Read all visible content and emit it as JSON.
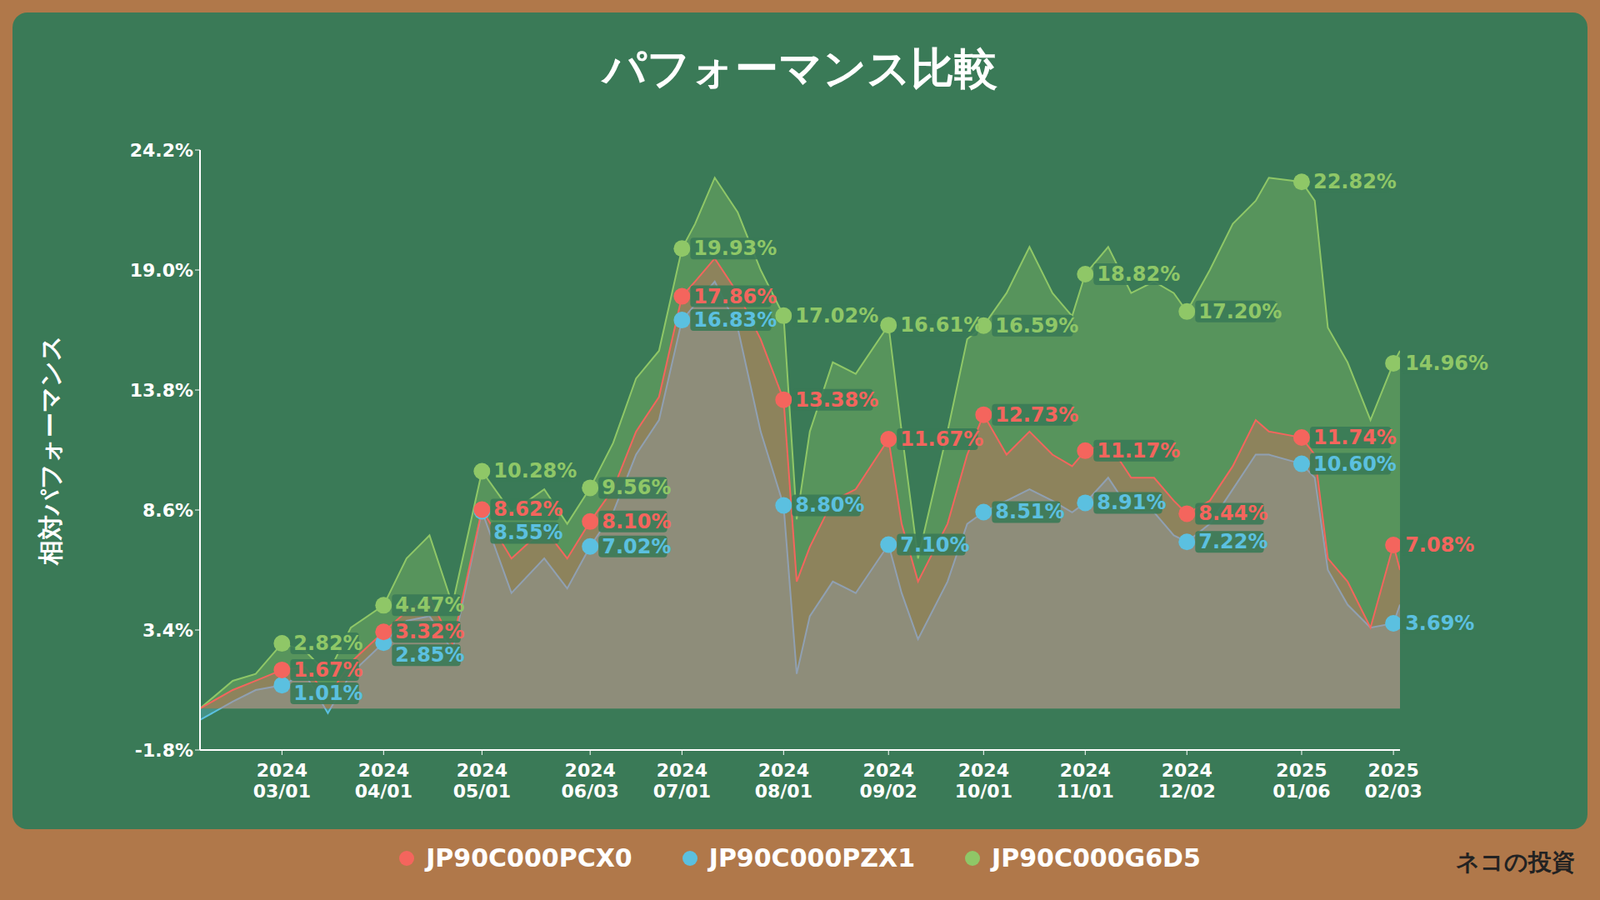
{
  "chart_data": {
    "type": "area",
    "title": "パフォーマンス比較",
    "y_label": "相対パフォーマンス",
    "credit": "ネコの投資",
    "x": [
      "2024-02-05",
      "2024-02-15",
      "2024-02-22",
      "2024-03-01",
      "2024-03-08",
      "2024-03-15",
      "2024-03-22",
      "2024-04-01",
      "2024-04-08",
      "2024-04-15",
      "2024-04-22",
      "2024-05-01",
      "2024-05-10",
      "2024-05-20",
      "2024-05-27",
      "2024-06-03",
      "2024-06-10",
      "2024-06-17",
      "2024-06-24",
      "2024-07-01",
      "2024-07-05",
      "2024-07-11",
      "2024-07-18",
      "2024-07-25",
      "2024-08-01",
      "2024-08-05",
      "2024-08-09",
      "2024-08-16",
      "2024-08-23",
      "2024-09-02",
      "2024-09-06",
      "2024-09-11",
      "2024-09-20",
      "2024-09-26",
      "2024-10-01",
      "2024-10-08",
      "2024-10-15",
      "2024-10-22",
      "2024-10-28",
      "2024-11-01",
      "2024-11-08",
      "2024-11-15",
      "2024-11-22",
      "2024-11-28",
      "2024-12-02",
      "2024-12-09",
      "2024-12-16",
      "2024-12-23",
      "2024-12-27",
      "2025-01-06",
      "2025-01-10",
      "2025-01-14",
      "2025-01-20",
      "2025-01-27",
      "2025-02-03",
      "2025-02-05"
    ],
    "xlim": [
      "2024-02-05",
      "2025-02-05"
    ],
    "xticks": [
      {
        "value": "2024-03-01",
        "label": "2024 03/01"
      },
      {
        "value": "2024-04-01",
        "label": "2024 04/01"
      },
      {
        "value": "2024-05-01",
        "label": "2024 05/01"
      },
      {
        "value": "2024-06-03",
        "label": "2024 06/03"
      },
      {
        "value": "2024-07-01",
        "label": "2024 07/01"
      },
      {
        "value": "2024-08-01",
        "label": "2024 08/01"
      },
      {
        "value": "2024-09-02",
        "label": "2024 09/02"
      },
      {
        "value": "2024-10-01",
        "label": "2024 10/01"
      },
      {
        "value": "2024-11-01",
        "label": "2024 11/01"
      },
      {
        "value": "2024-12-02",
        "label": "2024 12/02"
      },
      {
        "value": "2025-01-06",
        "label": "2025 01/06"
      },
      {
        "value": "2025-02-03",
        "label": "2025 02/03"
      }
    ],
    "ylim": [
      -1.8,
      24.2
    ],
    "yticks": [
      {
        "value": -1.8,
        "label": "-1.8%"
      },
      {
        "value": 3.4,
        "label": "3.4%"
      },
      {
        "value": 8.6,
        "label": "8.6%"
      },
      {
        "value": 13.8,
        "label": "13.8%"
      },
      {
        "value": 19.0,
        "label": "19.0%"
      },
      {
        "value": 24.2,
        "label": "24.2%"
      }
    ],
    "data_labels": true,
    "marker": "circle",
    "legend": "bottom",
    "series": [
      {
        "name": "JP90C000PCX0",
        "color": "#f4655d",
        "values": [
          0,
          0.8,
          1.2,
          1.67,
          1.8,
          0.5,
          2.0,
          3.32,
          4.2,
          4.8,
          2.8,
          8.62,
          6.5,
          7.8,
          6.5,
          8.1,
          9.5,
          12.0,
          13.5,
          17.86,
          18.5,
          19.5,
          18.0,
          16.0,
          13.38,
          5.5,
          7.0,
          9.0,
          9.5,
          11.67,
          8.0,
          5.5,
          8.0,
          11.0,
          12.73,
          11.0,
          12.0,
          11.0,
          10.5,
          11.17,
          11.5,
          10.0,
          10.0,
          9.0,
          8.44,
          9.0,
          10.5,
          12.5,
          12.0,
          11.74,
          11.0,
          6.5,
          5.5,
          3.5,
          7.08,
          6.0
        ],
        "value_labels": [
          null,
          null,
          null,
          "1.67%",
          null,
          null,
          null,
          "3.32%",
          null,
          null,
          null,
          "8.62%",
          null,
          null,
          null,
          "8.10%",
          null,
          null,
          null,
          "17.86%",
          null,
          null,
          null,
          null,
          "13.38%",
          null,
          null,
          null,
          null,
          "11.67%",
          null,
          null,
          null,
          null,
          "12.73%",
          null,
          null,
          null,
          null,
          "11.17%",
          null,
          null,
          null,
          null,
          "8.44%",
          null,
          null,
          null,
          null,
          "11.74%",
          null,
          null,
          null,
          null,
          "7.08%",
          null
        ]
      },
      {
        "name": "JP90C000PZX1",
        "color": "#5bc0e0",
        "values": [
          -0.5,
          0.3,
          0.8,
          1.01,
          1.5,
          -0.2,
          1.5,
          2.85,
          3.8,
          4.0,
          2.5,
          8.55,
          5.0,
          6.5,
          5.2,
          7.02,
          8.5,
          11.0,
          12.5,
          16.83,
          17.5,
          18.5,
          16.5,
          12.0,
          8.8,
          1.5,
          4.0,
          5.5,
          5.0,
          7.1,
          5.0,
          3.0,
          5.5,
          8.0,
          8.51,
          9.0,
          9.5,
          9.0,
          8.5,
          8.91,
          10.0,
          8.5,
          8.5,
          7.5,
          7.22,
          8.0,
          9.5,
          11.0,
          11.0,
          10.6,
          10.0,
          6.0,
          4.5,
          3.5,
          3.69,
          4.5
        ],
        "value_labels": [
          null,
          null,
          null,
          "1.01%",
          null,
          null,
          null,
          "2.85%",
          null,
          null,
          null,
          "8.55%",
          null,
          null,
          null,
          "7.02%",
          null,
          null,
          null,
          "16.83%",
          null,
          null,
          null,
          null,
          "8.80%",
          null,
          null,
          null,
          null,
          "7.10%",
          null,
          null,
          null,
          null,
          "8.51%",
          null,
          null,
          null,
          null,
          "8.91%",
          null,
          null,
          null,
          null,
          "7.22%",
          null,
          null,
          null,
          null,
          "10.60%",
          null,
          null,
          null,
          null,
          "3.69%",
          null
        ]
      },
      {
        "name": "JP90C000G6D5",
        "color": "#8fc767",
        "values": [
          0,
          1.2,
          1.5,
          2.82,
          2.5,
          1.5,
          3.5,
          4.47,
          6.5,
          7.5,
          4.5,
          10.28,
          8.5,
          9.5,
          8.0,
          9.56,
          11.5,
          14.3,
          15.5,
          19.93,
          21.0,
          23.0,
          21.5,
          19.0,
          17.02,
          8.2,
          12.0,
          15.0,
          14.5,
          16.61,
          12.0,
          6.5,
          12.0,
          16.0,
          16.59,
          18.0,
          20.0,
          18.0,
          17.0,
          18.82,
          20.0,
          18.0,
          18.5,
          18.0,
          17.2,
          19.0,
          21.0,
          22.0,
          23.0,
          22.82,
          22.0,
          16.5,
          15.0,
          12.5,
          14.96,
          15.5
        ],
        "value_labels": [
          null,
          null,
          null,
          "2.82%",
          null,
          null,
          null,
          "4.47%",
          null,
          null,
          null,
          "10.28%",
          null,
          null,
          null,
          "9.56%",
          null,
          null,
          null,
          "19.93%",
          null,
          null,
          null,
          null,
          "17.02%",
          null,
          null,
          null,
          null,
          "16.61%",
          null,
          null,
          null,
          null,
          "16.59%",
          null,
          null,
          null,
          null,
          "18.82%",
          null,
          null,
          null,
          null,
          "17.20%",
          null,
          null,
          null,
          null,
          "22.82%",
          null,
          null,
          null,
          null,
          "14.96%",
          null
        ]
      }
    ]
  }
}
